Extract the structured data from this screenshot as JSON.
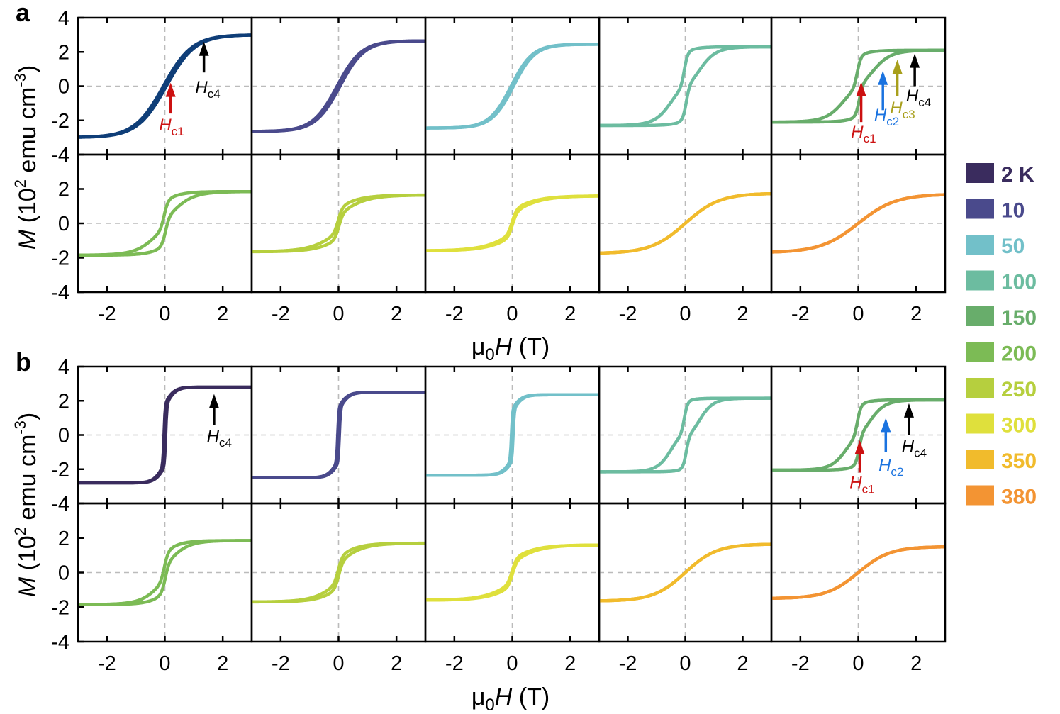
{
  "chart_data": {
    "type": "line",
    "title": "",
    "panels": [
      {
        "id": "a",
        "label": "a"
      },
      {
        "id": "b",
        "label": "b"
      }
    ],
    "xlabel": "μ0H (T)",
    "xlabel_parts": {
      "prefix": "μ",
      "sub": "0",
      "var": "H",
      "unit": " (T)"
    },
    "ylabel": "M (10^2 emu cm^-3)",
    "ylabel_parts": {
      "var": "M",
      "open": " (10",
      "sup1": "2",
      "mid": " emu cm",
      "sup2": "-3",
      "close": ")"
    },
    "xlim": [
      -3,
      3
    ],
    "ylim": [
      -4,
      4
    ],
    "xticks": [
      -2,
      0,
      2
    ],
    "xtick_labels": [
      "-2",
      "0",
      "2"
    ],
    "yticks": [
      -4,
      -2,
      0,
      2,
      4
    ],
    "ytick_labels": [
      "-4",
      "-2",
      "0",
      "2",
      "4"
    ],
    "ytick_labels_lower": [
      "-4",
      "-2",
      "0",
      "2"
    ],
    "grid": "dashed lines at x=0 and y=0",
    "legend": {
      "position": "right",
      "entries": [
        {
          "label": "2 K",
          "temperature_K": 2,
          "color": "#3a2c5e"
        },
        {
          "label": "10",
          "temperature_K": 10,
          "color": "#4a4a8c"
        },
        {
          "label": "50",
          "temperature_K": 50,
          "color": "#72c0c9"
        },
        {
          "label": "100",
          "temperature_K": 100,
          "color": "#6cbca0"
        },
        {
          "label": "150",
          "temperature_K": 150,
          "color": "#68ad6b"
        },
        {
          "label": "200",
          "temperature_K": 200,
          "color": "#7cbb55"
        },
        {
          "label": "250",
          "temperature_K": 250,
          "color": "#b6cf3e"
        },
        {
          "label": "300",
          "temperature_K": 300,
          "color": "#dfe03c"
        },
        {
          "label": "350",
          "temperature_K": 350,
          "color": "#f1bb2c"
        },
        {
          "label": "380",
          "temperature_K": 380,
          "color": "#f39433"
        }
      ]
    },
    "series": {
      "a": [
        {
          "name": "2 K",
          "color": "#0f3e78",
          "Ms": 3.0,
          "width": 1.0,
          "steps": 0,
          "hysteresis": 0.05
        },
        {
          "name": "10",
          "color": "#4a4a8c",
          "Ms": 2.65,
          "width": 0.85,
          "steps": 0,
          "hysteresis": 0.05
        },
        {
          "name": "50",
          "color": "#72c0c9",
          "Ms": 2.45,
          "width": 0.75,
          "steps": 0,
          "hysteresis": 0.04
        },
        {
          "name": "100",
          "color": "#6cbca0",
          "Ms": 2.3,
          "width": 0.55,
          "steps": 1,
          "hysteresis": 0.12
        },
        {
          "name": "150",
          "color": "#68ad6b",
          "Ms": 2.1,
          "width": 0.6,
          "steps": 1,
          "hysteresis": 0.12
        },
        {
          "name": "200",
          "color": "#7cbb55",
          "Ms": 1.85,
          "width": 0.7,
          "steps": 1,
          "hysteresis": 0.08
        },
        {
          "name": "250",
          "color": "#b6cf3e",
          "Ms": 1.65,
          "width": 0.9,
          "steps": 1,
          "hysteresis": 0.04
        },
        {
          "name": "300",
          "color": "#dfe03c",
          "Ms": 1.6,
          "width": 1.0,
          "steps": 1,
          "hysteresis": 0.02
        },
        {
          "name": "350",
          "color": "#f1bb2c",
          "Ms": 1.75,
          "width": 1.2,
          "steps": 0,
          "hysteresis": 0.0
        },
        {
          "name": "380",
          "color": "#f39433",
          "Ms": 1.7,
          "width": 1.3,
          "steps": 0,
          "hysteresis": 0.0
        }
      ],
      "b": [
        {
          "name": "2 K",
          "color": "#3a2c5e",
          "Ms": 2.8,
          "width": 0.35,
          "steps": 0,
          "hysteresis": 0.03,
          "sharp": true
        },
        {
          "name": "10",
          "color": "#4a4a8c",
          "Ms": 2.5,
          "width": 0.35,
          "steps": 0,
          "hysteresis": 0.03,
          "sharp": true
        },
        {
          "name": "50",
          "color": "#72c0c9",
          "Ms": 2.35,
          "width": 0.35,
          "steps": 0,
          "hysteresis": 0.03,
          "sharp": true
        },
        {
          "name": "100",
          "color": "#6cbca0",
          "Ms": 2.15,
          "width": 0.45,
          "steps": 1,
          "hysteresis": 0.12
        },
        {
          "name": "150",
          "color": "#68ad6b",
          "Ms": 2.05,
          "width": 0.5,
          "steps": 1,
          "hysteresis": 0.1
        },
        {
          "name": "200",
          "color": "#7cbb55",
          "Ms": 1.85,
          "width": 0.65,
          "steps": 1,
          "hysteresis": 0.05
        },
        {
          "name": "250",
          "color": "#b6cf3e",
          "Ms": 1.7,
          "width": 0.8,
          "steps": 1,
          "hysteresis": 0.03
        },
        {
          "name": "300",
          "color": "#dfe03c",
          "Ms": 1.6,
          "width": 0.95,
          "steps": 1,
          "hysteresis": 0.02
        },
        {
          "name": "350",
          "color": "#f1bb2c",
          "Ms": 1.65,
          "width": 1.1,
          "steps": 0,
          "hysteresis": 0.0
        },
        {
          "name": "380",
          "color": "#f39433",
          "Ms": 1.5,
          "width": 1.1,
          "steps": 0,
          "hysteresis": 0.0
        }
      ]
    },
    "annotations": [
      {
        "panel": "a",
        "subplot": 0,
        "label": "H",
        "sub": "c1",
        "x": 0.2,
        "y_tip": 0.2,
        "y_tail": -1.6,
        "color": "#cc1111",
        "text_x": -0.2,
        "text_y": -2.6
      },
      {
        "panel": "a",
        "subplot": 0,
        "label": "H",
        "sub": "c4",
        "x": 1.35,
        "y_tip": 2.6,
        "y_tail": 0.8,
        "color": "#000000",
        "text_x": 1.05,
        "text_y": -0.4
      },
      {
        "panel": "a",
        "subplot": 4,
        "label": "H",
        "sub": "c1",
        "x": 0.1,
        "y_tip": 0.25,
        "y_tail": -2.1,
        "color": "#cc1111",
        "text_x": -0.25,
        "text_y": -3.0
      },
      {
        "panel": "a",
        "subplot": 4,
        "label": "H",
        "sub": "c2",
        "x": 0.85,
        "y_tip": 0.9,
        "y_tail": -1.4,
        "color": "#1a73e0",
        "text_x": 0.55,
        "text_y": -2.0
      },
      {
        "panel": "a",
        "subplot": 4,
        "label": "H",
        "sub": "c3",
        "x": 1.35,
        "y_tip": 1.55,
        "y_tail": -0.6,
        "color": "#a89f1c",
        "text_x": 1.1,
        "text_y": -1.6
      },
      {
        "panel": "a",
        "subplot": 4,
        "label": "H",
        "sub": "c4",
        "x": 1.95,
        "y_tip": 1.9,
        "y_tail": 0.0,
        "color": "#000000",
        "text_x": 1.65,
        "text_y": -0.9
      },
      {
        "panel": "b",
        "subplot": 0,
        "label": "H",
        "sub": "c4",
        "x": 1.7,
        "y_tip": 2.4,
        "y_tail": 0.6,
        "color": "#000000",
        "text_x": 1.45,
        "text_y": -0.4
      },
      {
        "panel": "b",
        "subplot": 4,
        "label": "H",
        "sub": "c1",
        "x": 0.05,
        "y_tip": -0.3,
        "y_tail": -2.2,
        "color": "#cc1111",
        "text_x": -0.3,
        "text_y": -3.1
      },
      {
        "panel": "b",
        "subplot": 4,
        "label": "H",
        "sub": "c2",
        "x": 0.95,
        "y_tip": 1.0,
        "y_tail": -1.0,
        "color": "#1a73e0",
        "text_x": 0.7,
        "text_y": -2.1
      },
      {
        "panel": "b",
        "subplot": 4,
        "label": "H",
        "sub": "c4",
        "x": 1.75,
        "y_tip": 1.85,
        "y_tail": 0.0,
        "color": "#000000",
        "text_x": 1.5,
        "text_y": -1.0
      }
    ]
  }
}
